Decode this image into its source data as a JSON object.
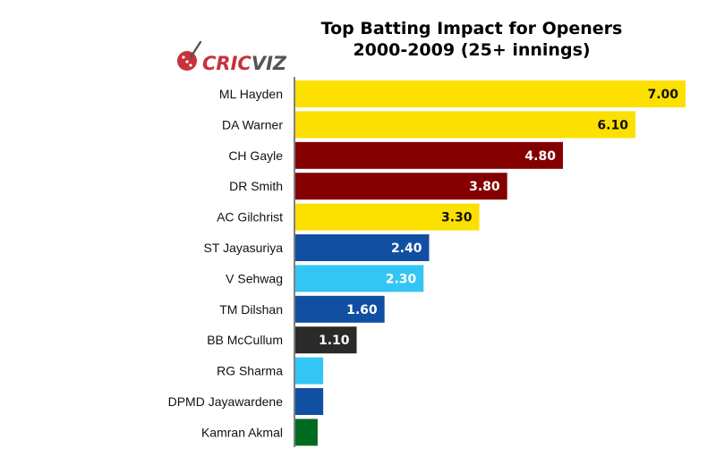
{
  "brand": {
    "logo_text_a": "CRIC",
    "logo_text_b": "VIZ",
    "logo_color": "#c8323c"
  },
  "colors": {
    "gold": "#fce000",
    "maroon": "#840000",
    "royal_blue": "#114fa3",
    "light_blue": "#33c6f4",
    "black": "#2a2a2a",
    "green": "#006b1f"
  },
  "chart_data": {
    "type": "bar",
    "orientation": "horizontal",
    "title_lines": [
      "Top Batting Impact for Openers",
      "2000-2009 (25+ innings)"
    ],
    "categories": [
      "ML Hayden",
      "DA Warner",
      "CH Gayle",
      "DR Smith",
      "AC Gilchrist",
      "ST Jayasuriya",
      "V Sehwag",
      "TM Dilshan",
      "BB McCullum",
      "RG Sharma",
      "DPMD Jayawardene",
      "Kamran Akmal"
    ],
    "values": [
      7.0,
      6.1,
      4.8,
      3.8,
      3.3,
      2.4,
      2.3,
      1.6,
      1.1,
      0.5,
      0.5,
      0.4
    ],
    "value_labels": [
      "7.00",
      "6.10",
      "4.80",
      "3.80",
      "3.30",
      "2.40",
      "2.30",
      "1.60",
      "1.10",
      "",
      "",
      ""
    ],
    "bar_colors": [
      "#fce000",
      "#fce000",
      "#840000",
      "#840000",
      "#fce000",
      "#114fa3",
      "#33c6f4",
      "#114fa3",
      "#2a2a2a",
      "#33c6f4",
      "#114fa3",
      "#006b1f"
    ],
    "label_dark": [
      true,
      true,
      false,
      false,
      true,
      false,
      false,
      false,
      false,
      false,
      false,
      false
    ],
    "xlim": [
      0,
      7.0
    ],
    "grid": false,
    "legend": "none"
  }
}
